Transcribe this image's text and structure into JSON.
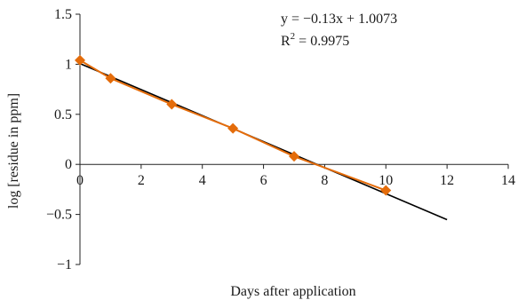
{
  "chart_data": {
    "type": "scatter",
    "title": "",
    "xlabel": "Days after application",
    "ylabel": "log [residue in ppm]",
    "xlim": [
      0,
      14
    ],
    "ylim": [
      -1,
      1.5
    ],
    "x_ticks": [
      "0",
      "2",
      "4",
      "6",
      "8",
      "10",
      "12",
      "14"
    ],
    "y_ticks": [
      "1.5",
      "1",
      "0.5",
      "0",
      "−0.5",
      "−1"
    ],
    "x_tick_values": [
      0,
      2,
      4,
      6,
      8,
      10,
      12,
      14
    ],
    "y_tick_values": [
      1.5,
      1,
      0.5,
      0,
      -0.5,
      -1
    ],
    "grid": false,
    "legend": "none",
    "series": [
      {
        "x": [
          0,
          1,
          3,
          5,
          7,
          10
        ],
        "y": [
          1.04,
          0.86,
          0.6,
          0.36,
          0.08,
          -0.26
        ],
        "color": "#E46C0A",
        "marker": "diamond",
        "line": true
      }
    ],
    "trendline": {
      "slope": -0.13,
      "intercept": 1.0073,
      "x_range": [
        0,
        12
      ],
      "color": "#000000",
      "equation": "y  = −0.13x + 1.0073",
      "r2_prefix": "R",
      "r2_sup": "2",
      "r2_value": " = 0.9975"
    }
  }
}
